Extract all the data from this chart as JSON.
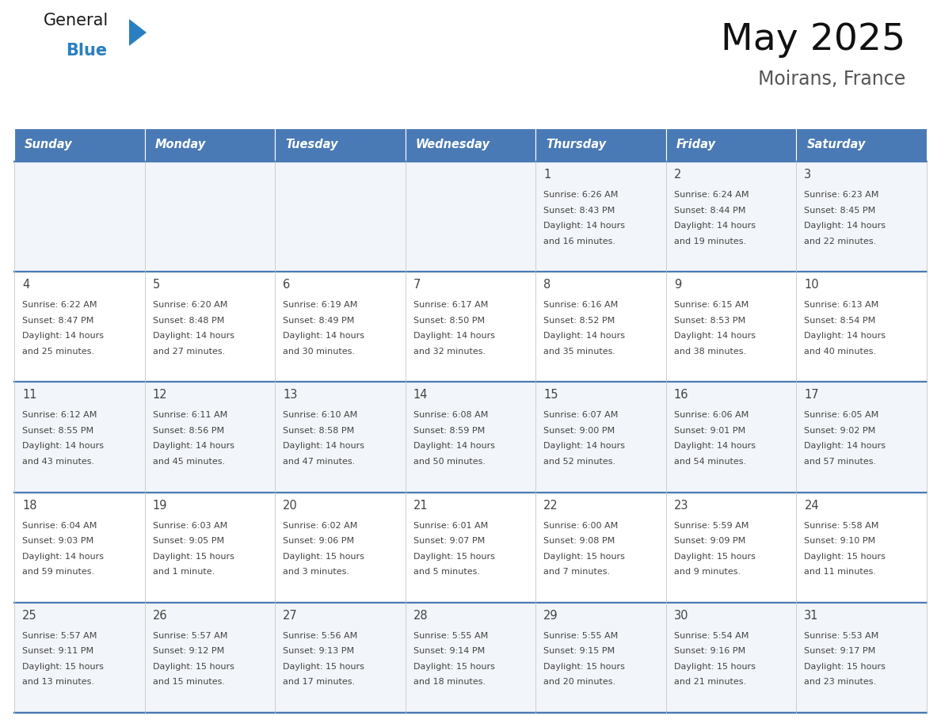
{
  "title": "May 2025",
  "subtitle": "Moirans, France",
  "header_bg_color": "#4a7ab5",
  "header_text_color": "#ffffff",
  "row_bg_colors": [
    "#f2f5f9",
    "#ffffff"
  ],
  "text_color": "#444444",
  "border_color": "#4a7ab5",
  "cell_border_color": "#cccccc",
  "days_of_week": [
    "Sunday",
    "Monday",
    "Tuesday",
    "Wednesday",
    "Thursday",
    "Friday",
    "Saturday"
  ],
  "weeks": [
    [
      {
        "day": "",
        "sunrise": "",
        "sunset": "",
        "daylight_line1": "",
        "daylight_line2": ""
      },
      {
        "day": "",
        "sunrise": "",
        "sunset": "",
        "daylight_line1": "",
        "daylight_line2": ""
      },
      {
        "day": "",
        "sunrise": "",
        "sunset": "",
        "daylight_line1": "",
        "daylight_line2": ""
      },
      {
        "day": "",
        "sunrise": "",
        "sunset": "",
        "daylight_line1": "",
        "daylight_line2": ""
      },
      {
        "day": "1",
        "sunrise": "6:26 AM",
        "sunset": "8:43 PM",
        "daylight_line1": "14 hours",
        "daylight_line2": "and 16 minutes."
      },
      {
        "day": "2",
        "sunrise": "6:24 AM",
        "sunset": "8:44 PM",
        "daylight_line1": "14 hours",
        "daylight_line2": "and 19 minutes."
      },
      {
        "day": "3",
        "sunrise": "6:23 AM",
        "sunset": "8:45 PM",
        "daylight_line1": "14 hours",
        "daylight_line2": "and 22 minutes."
      }
    ],
    [
      {
        "day": "4",
        "sunrise": "6:22 AM",
        "sunset": "8:47 PM",
        "daylight_line1": "14 hours",
        "daylight_line2": "and 25 minutes."
      },
      {
        "day": "5",
        "sunrise": "6:20 AM",
        "sunset": "8:48 PM",
        "daylight_line1": "14 hours",
        "daylight_line2": "and 27 minutes."
      },
      {
        "day": "6",
        "sunrise": "6:19 AM",
        "sunset": "8:49 PM",
        "daylight_line1": "14 hours",
        "daylight_line2": "and 30 minutes."
      },
      {
        "day": "7",
        "sunrise": "6:17 AM",
        "sunset": "8:50 PM",
        "daylight_line1": "14 hours",
        "daylight_line2": "and 32 minutes."
      },
      {
        "day": "8",
        "sunrise": "6:16 AM",
        "sunset": "8:52 PM",
        "daylight_line1": "14 hours",
        "daylight_line2": "and 35 minutes."
      },
      {
        "day": "9",
        "sunrise": "6:15 AM",
        "sunset": "8:53 PM",
        "daylight_line1": "14 hours",
        "daylight_line2": "and 38 minutes."
      },
      {
        "day": "10",
        "sunrise": "6:13 AM",
        "sunset": "8:54 PM",
        "daylight_line1": "14 hours",
        "daylight_line2": "and 40 minutes."
      }
    ],
    [
      {
        "day": "11",
        "sunrise": "6:12 AM",
        "sunset": "8:55 PM",
        "daylight_line1": "14 hours",
        "daylight_line2": "and 43 minutes."
      },
      {
        "day": "12",
        "sunrise": "6:11 AM",
        "sunset": "8:56 PM",
        "daylight_line1": "14 hours",
        "daylight_line2": "and 45 minutes."
      },
      {
        "day": "13",
        "sunrise": "6:10 AM",
        "sunset": "8:58 PM",
        "daylight_line1": "14 hours",
        "daylight_line2": "and 47 minutes."
      },
      {
        "day": "14",
        "sunrise": "6:08 AM",
        "sunset": "8:59 PM",
        "daylight_line1": "14 hours",
        "daylight_line2": "and 50 minutes."
      },
      {
        "day": "15",
        "sunrise": "6:07 AM",
        "sunset": "9:00 PM",
        "daylight_line1": "14 hours",
        "daylight_line2": "and 52 minutes."
      },
      {
        "day": "16",
        "sunrise": "6:06 AM",
        "sunset": "9:01 PM",
        "daylight_line1": "14 hours",
        "daylight_line2": "and 54 minutes."
      },
      {
        "day": "17",
        "sunrise": "6:05 AM",
        "sunset": "9:02 PM",
        "daylight_line1": "14 hours",
        "daylight_line2": "and 57 minutes."
      }
    ],
    [
      {
        "day": "18",
        "sunrise": "6:04 AM",
        "sunset": "9:03 PM",
        "daylight_line1": "14 hours",
        "daylight_line2": "and 59 minutes."
      },
      {
        "day": "19",
        "sunrise": "6:03 AM",
        "sunset": "9:05 PM",
        "daylight_line1": "15 hours",
        "daylight_line2": "and 1 minute."
      },
      {
        "day": "20",
        "sunrise": "6:02 AM",
        "sunset": "9:06 PM",
        "daylight_line1": "15 hours",
        "daylight_line2": "and 3 minutes."
      },
      {
        "day": "21",
        "sunrise": "6:01 AM",
        "sunset": "9:07 PM",
        "daylight_line1": "15 hours",
        "daylight_line2": "and 5 minutes."
      },
      {
        "day": "22",
        "sunrise": "6:00 AM",
        "sunset": "9:08 PM",
        "daylight_line1": "15 hours",
        "daylight_line2": "and 7 minutes."
      },
      {
        "day": "23",
        "sunrise": "5:59 AM",
        "sunset": "9:09 PM",
        "daylight_line1": "15 hours",
        "daylight_line2": "and 9 minutes."
      },
      {
        "day": "24",
        "sunrise": "5:58 AM",
        "sunset": "9:10 PM",
        "daylight_line1": "15 hours",
        "daylight_line2": "and 11 minutes."
      }
    ],
    [
      {
        "day": "25",
        "sunrise": "5:57 AM",
        "sunset": "9:11 PM",
        "daylight_line1": "15 hours",
        "daylight_line2": "and 13 minutes."
      },
      {
        "day": "26",
        "sunrise": "5:57 AM",
        "sunset": "9:12 PM",
        "daylight_line1": "15 hours",
        "daylight_line2": "and 15 minutes."
      },
      {
        "day": "27",
        "sunrise": "5:56 AM",
        "sunset": "9:13 PM",
        "daylight_line1": "15 hours",
        "daylight_line2": "and 17 minutes."
      },
      {
        "day": "28",
        "sunrise": "5:55 AM",
        "sunset": "9:14 PM",
        "daylight_line1": "15 hours",
        "daylight_line2": "and 18 minutes."
      },
      {
        "day": "29",
        "sunrise": "5:55 AM",
        "sunset": "9:15 PM",
        "daylight_line1": "15 hours",
        "daylight_line2": "and 20 minutes."
      },
      {
        "day": "30",
        "sunrise": "5:54 AM",
        "sunset": "9:16 PM",
        "daylight_line1": "15 hours",
        "daylight_line2": "and 21 minutes."
      },
      {
        "day": "31",
        "sunrise": "5:53 AM",
        "sunset": "9:17 PM",
        "daylight_line1": "15 hours",
        "daylight_line2": "and 23 minutes."
      }
    ]
  ],
  "logo_general_color": "#1a1a1a",
  "logo_blue_color": "#2a7fc1",
  "logo_triangle_color": "#2a7fc1"
}
